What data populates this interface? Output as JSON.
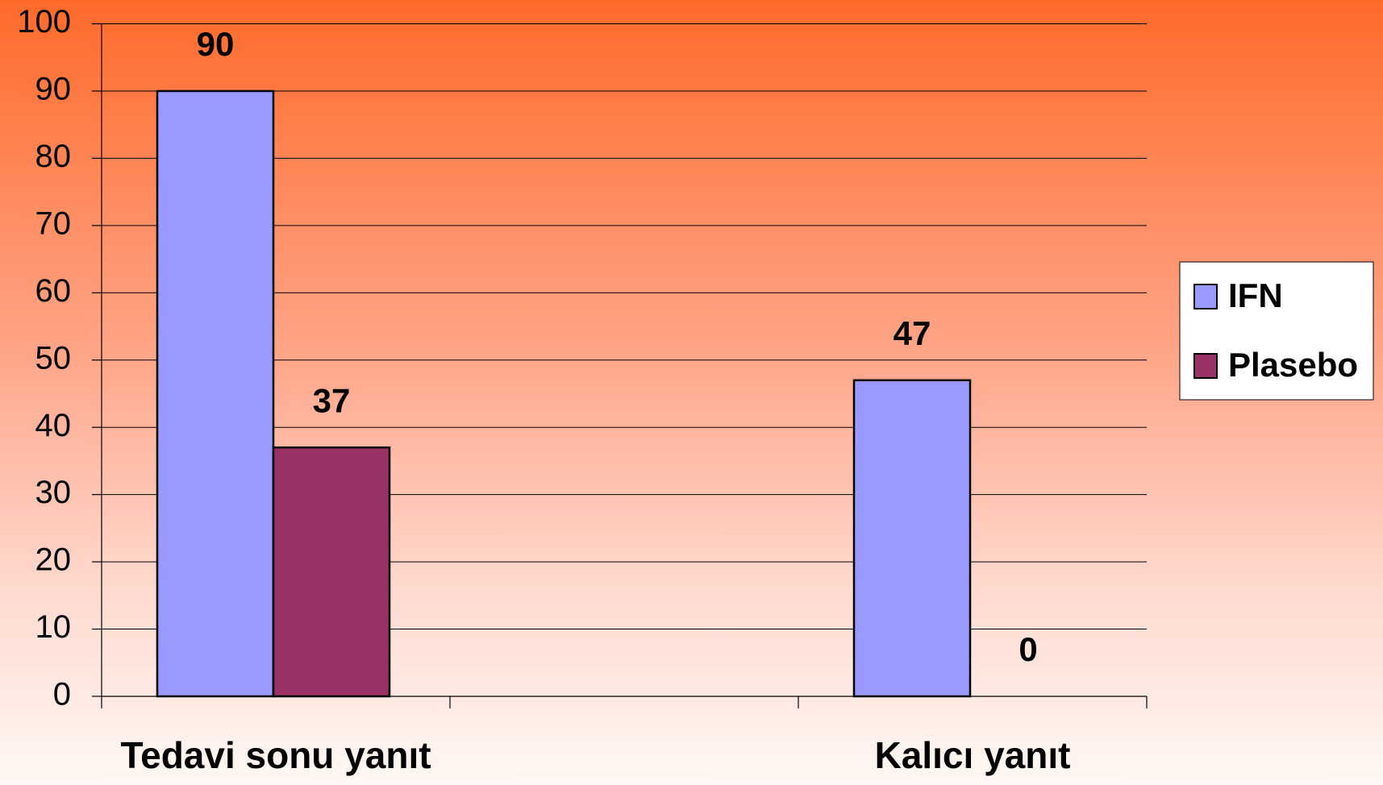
{
  "chart_data": {
    "type": "bar",
    "categories": [
      "Tedavi sonu yanıt",
      null,
      "Kalıcı yanıt"
    ],
    "series": [
      {
        "name": "IFN",
        "color": "#9999ff",
        "values": [
          90,
          null,
          47
        ]
      },
      {
        "name": "Plasebo",
        "color": "#993366",
        "values": [
          37,
          null,
          0
        ]
      }
    ],
    "ylim": [
      0,
      100
    ],
    "yticks": [
      0,
      10,
      20,
      30,
      40,
      50,
      60,
      70,
      80,
      90,
      100
    ],
    "grid": true,
    "legend": "right"
  }
}
